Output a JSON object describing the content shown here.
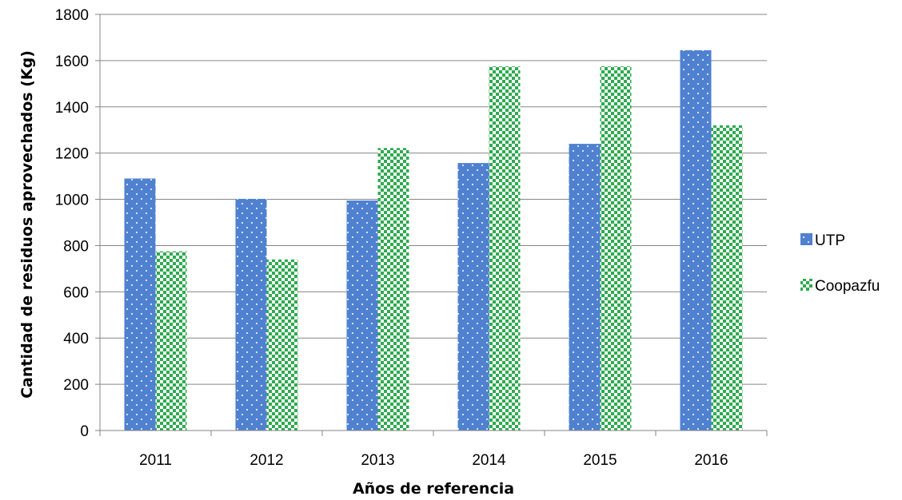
{
  "chart_data": {
    "type": "bar",
    "title": "",
    "xlabel": "Años de referencia",
    "ylabel": "Cantidad de residuos aprovechados (Kg)",
    "categories": [
      "2011",
      "2012",
      "2013",
      "2014",
      "2015",
      "2016"
    ],
    "series": [
      {
        "name": "UTP",
        "values": [
          1090,
          1002,
          995,
          1157,
          1240,
          1645
        ],
        "color": "#4f81d0",
        "pattern": "dotted"
      },
      {
        "name": "Coopazfu",
        "values": [
          775,
          740,
          1222,
          1575,
          1575,
          1320
        ],
        "color": "#2eaa4f",
        "pattern": "checkerboard"
      }
    ],
    "ylim": [
      0,
      1800
    ],
    "yticks": [
      "0",
      "200",
      "400",
      "600",
      "800",
      "1000",
      "1200",
      "1400",
      "1600",
      "1800"
    ],
    "grid": true,
    "legend_position": "right"
  }
}
